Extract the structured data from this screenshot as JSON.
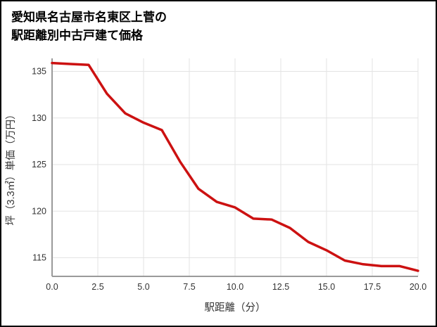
{
  "header": {
    "title_line1": "愛知県名古屋市名東区上菅の",
    "title_line2": "駅距離別中古戸建て価格"
  },
  "chart_data": {
    "type": "line",
    "title": "愛知県名古屋市名東区上菅の駅距離別中古戸建て価格",
    "xlabel": "駅距離（分）",
    "ylabel": "坪（3.3㎡）単価（万円）",
    "x": [
      0,
      1,
      2,
      3,
      4,
      5,
      6,
      7,
      8,
      9,
      10,
      11,
      12,
      13,
      14,
      15,
      16,
      17,
      18,
      19,
      20
    ],
    "y": [
      135.9,
      135.8,
      135.7,
      132.6,
      130.5,
      129.5,
      128.7,
      125.3,
      122.4,
      121.0,
      120.4,
      119.2,
      119.1,
      118.2,
      116.7,
      115.8,
      114.7,
      114.3,
      114.1,
      114.1,
      113.6
    ],
    "xlim": [
      0,
      20
    ],
    "ylim": [
      113.0,
      136.4
    ],
    "xticks": {
      "values": [
        0,
        2.5,
        5,
        7.5,
        10,
        12.5,
        15,
        17.5,
        20
      ],
      "labels": [
        "0.0",
        "2.5",
        "5.0",
        "7.5",
        "10.0",
        "12.5",
        "15.0",
        "17.5",
        "20.0"
      ]
    },
    "yticks": {
      "values": [
        115,
        120,
        125,
        130,
        135
      ],
      "labels": [
        "115",
        "120",
        "125",
        "130",
        "135"
      ]
    },
    "grid": true,
    "legend_position": "none",
    "line_color": "#cc1111",
    "colors": {
      "grid": "#e3e3e3",
      "spine": "#9a9a9a",
      "tick_text": "#333333",
      "title_text": "#000000",
      "background": "#ffffff"
    }
  }
}
